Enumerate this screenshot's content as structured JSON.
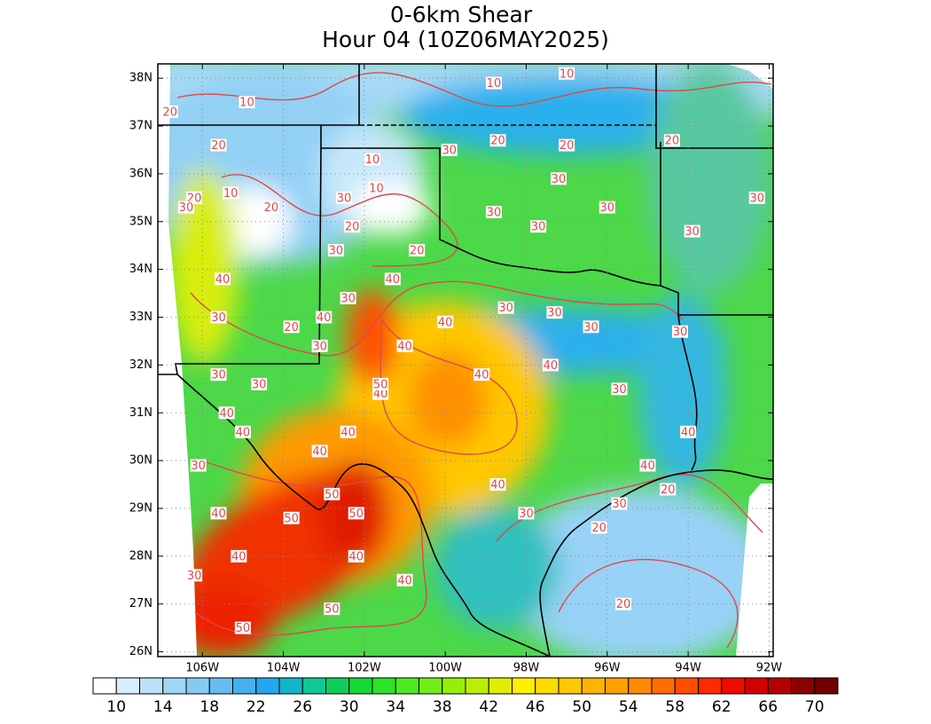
{
  "map": {
    "title": "0-6km Shear",
    "subtitle": "Hour 04 (10Z06MAY2025)",
    "xlim": [
      -107.1,
      -91.9
    ],
    "ylim": [
      25.9,
      38.3
    ],
    "xticks": [
      {
        "value": -106,
        "label": "106W"
      },
      {
        "value": -104,
        "label": "104W"
      },
      {
        "value": -102,
        "label": "102W"
      },
      {
        "value": -100,
        "label": "100W"
      },
      {
        "value": -98,
        "label": "98W"
      },
      {
        "value": -96,
        "label": "96W"
      },
      {
        "value": -94,
        "label": "94W"
      },
      {
        "value": -92,
        "label": "92W"
      }
    ],
    "yticks": [
      {
        "value": 38,
        "label": "38N"
      },
      {
        "value": 37,
        "label": "37N"
      },
      {
        "value": 36,
        "label": "36N"
      },
      {
        "value": 35,
        "label": "35N"
      },
      {
        "value": 34,
        "label": "34N"
      },
      {
        "value": 33,
        "label": "33N"
      },
      {
        "value": 32,
        "label": "32N"
      },
      {
        "value": 31,
        "label": "31N"
      },
      {
        "value": 30,
        "label": "30N"
      },
      {
        "value": 29,
        "label": "29N"
      },
      {
        "value": 28,
        "label": "28N"
      },
      {
        "value": 27,
        "label": "27N"
      },
      {
        "value": 26,
        "label": "26N"
      }
    ],
    "grid": true,
    "contour_color": "#e04848",
    "contour_labels": [
      {
        "value": 10,
        "lon": -97.0,
        "lat": 38.1
      },
      {
        "value": 10,
        "lon": -98.8,
        "lat": 37.9
      },
      {
        "value": 10,
        "lon": -104.9,
        "lat": 37.5
      },
      {
        "value": 10,
        "lon": -101.8,
        "lat": 36.3
      },
      {
        "value": 10,
        "lon": -101.7,
        "lat": 35.7
      },
      {
        "value": 10,
        "lon": -105.3,
        "lat": 35.6
      },
      {
        "value": 20,
        "lon": -106.8,
        "lat": 37.3
      },
      {
        "value": 20,
        "lon": -98.7,
        "lat": 36.7
      },
      {
        "value": 20,
        "lon": -97.0,
        "lat": 36.6
      },
      {
        "value": 20,
        "lon": -94.4,
        "lat": 36.7
      },
      {
        "value": 20,
        "lon": -105.6,
        "lat": 36.6
      },
      {
        "value": 20,
        "lon": -104.3,
        "lat": 35.3
      },
      {
        "value": 20,
        "lon": -102.3,
        "lat": 34.9
      },
      {
        "value": 20,
        "lon": -100.7,
        "lat": 34.4
      },
      {
        "value": 20,
        "lon": -103.8,
        "lat": 32.8
      },
      {
        "value": 20,
        "lon": -94.5,
        "lat": 29.4
      },
      {
        "value": 20,
        "lon": -96.2,
        "lat": 28.6
      },
      {
        "value": 20,
        "lon": -95.6,
        "lat": 27.0
      },
      {
        "value": 20,
        "lon": -106.2,
        "lat": 35.5
      },
      {
        "value": 30,
        "lon": -99.9,
        "lat": 36.5
      },
      {
        "value": 30,
        "lon": -97.2,
        "lat": 35.9
      },
      {
        "value": 30,
        "lon": -106.4,
        "lat": 35.3
      },
      {
        "value": 30,
        "lon": -92.3,
        "lat": 35.5
      },
      {
        "value": 30,
        "lon": -98.8,
        "lat": 35.2
      },
      {
        "value": 30,
        "lon": -96.0,
        "lat": 35.3
      },
      {
        "value": 30,
        "lon": -97.7,
        "lat": 34.9
      },
      {
        "value": 30,
        "lon": -93.9,
        "lat": 34.8
      },
      {
        "value": 30,
        "lon": -102.5,
        "lat": 35.5
      },
      {
        "value": 30,
        "lon": -102.7,
        "lat": 34.4
      },
      {
        "value": 30,
        "lon": -102.4,
        "lat": 33.4
      },
      {
        "value": 30,
        "lon": -105.6,
        "lat": 33.0
      },
      {
        "value": 30,
        "lon": -98.5,
        "lat": 33.2
      },
      {
        "value": 30,
        "lon": -97.3,
        "lat": 33.1
      },
      {
        "value": 30,
        "lon": -96.4,
        "lat": 32.8
      },
      {
        "value": 30,
        "lon": -94.2,
        "lat": 32.7
      },
      {
        "value": 30,
        "lon": -103.1,
        "lat": 32.4
      },
      {
        "value": 30,
        "lon": -105.6,
        "lat": 31.8
      },
      {
        "value": 30,
        "lon": -104.6,
        "lat": 31.6
      },
      {
        "value": 30,
        "lon": -95.7,
        "lat": 31.5
      },
      {
        "value": 30,
        "lon": -106.1,
        "lat": 29.9
      },
      {
        "value": 30,
        "lon": -98.0,
        "lat": 28.9
      },
      {
        "value": 30,
        "lon": -95.7,
        "lat": 29.1
      },
      {
        "value": 30,
        "lon": -106.2,
        "lat": 27.6
      },
      {
        "value": 40,
        "lon": -105.5,
        "lat": 33.8
      },
      {
        "value": 40,
        "lon": -101.3,
        "lat": 33.8
      },
      {
        "value": 40,
        "lon": -103.0,
        "lat": 33.0
      },
      {
        "value": 40,
        "lon": -100.0,
        "lat": 32.9
      },
      {
        "value": 40,
        "lon": -101.0,
        "lat": 32.4
      },
      {
        "value": 40,
        "lon": -97.4,
        "lat": 32.0
      },
      {
        "value": 40,
        "lon": -99.1,
        "lat": 31.8
      },
      {
        "value": 40,
        "lon": -101.6,
        "lat": 31.4
      },
      {
        "value": 40,
        "lon": -105.4,
        "lat": 31.0
      },
      {
        "value": 40,
        "lon": -105.0,
        "lat": 30.6
      },
      {
        "value": 40,
        "lon": -102.4,
        "lat": 30.6
      },
      {
        "value": 40,
        "lon": -103.1,
        "lat": 30.2
      },
      {
        "value": 40,
        "lon": -94.0,
        "lat": 30.6
      },
      {
        "value": 40,
        "lon": -95.0,
        "lat": 29.9
      },
      {
        "value": 40,
        "lon": -98.7,
        "lat": 29.5
      },
      {
        "value": 40,
        "lon": -105.6,
        "lat": 28.9
      },
      {
        "value": 40,
        "lon": -105.1,
        "lat": 28.0
      },
      {
        "value": 40,
        "lon": -102.2,
        "lat": 28.0
      },
      {
        "value": 40,
        "lon": -101.0,
        "lat": 27.5
      },
      {
        "value": 50,
        "lon": -101.6,
        "lat": 31.6
      },
      {
        "value": 50,
        "lon": -102.8,
        "lat": 29.3
      },
      {
        "value": 50,
        "lon": -102.2,
        "lat": 28.9
      },
      {
        "value": 50,
        "lon": -103.8,
        "lat": 28.8
      },
      {
        "value": 50,
        "lon": -102.8,
        "lat": 26.9
      },
      {
        "value": 50,
        "lon": -105.0,
        "lat": 26.5
      }
    ],
    "colorbar": {
      "lim": [
        8,
        72
      ],
      "ticks": [
        10,
        14,
        18,
        22,
        26,
        30,
        34,
        38,
        42,
        46,
        50,
        54,
        58,
        62,
        66,
        70
      ],
      "colors": [
        "#ffffff",
        "#d8eefc",
        "#bde2f8",
        "#a2d6f6",
        "#86caf4",
        "#66bcf2",
        "#46b0f0",
        "#26a6ee",
        "#12b6c8",
        "#10c896",
        "#10cc5e",
        "#16d836",
        "#2ee22a",
        "#4cea20",
        "#70ee16",
        "#96ee0c",
        "#bcee04",
        "#e0ee00",
        "#fff000",
        "#ffdc00",
        "#ffc800",
        "#ffb400",
        "#ffa000",
        "#ff8a00",
        "#ff6e00",
        "#ff4e00",
        "#ff2a00",
        "#ee0c00",
        "#d40000",
        "#b40000",
        "#8c0000",
        "#720000"
      ]
    }
  }
}
